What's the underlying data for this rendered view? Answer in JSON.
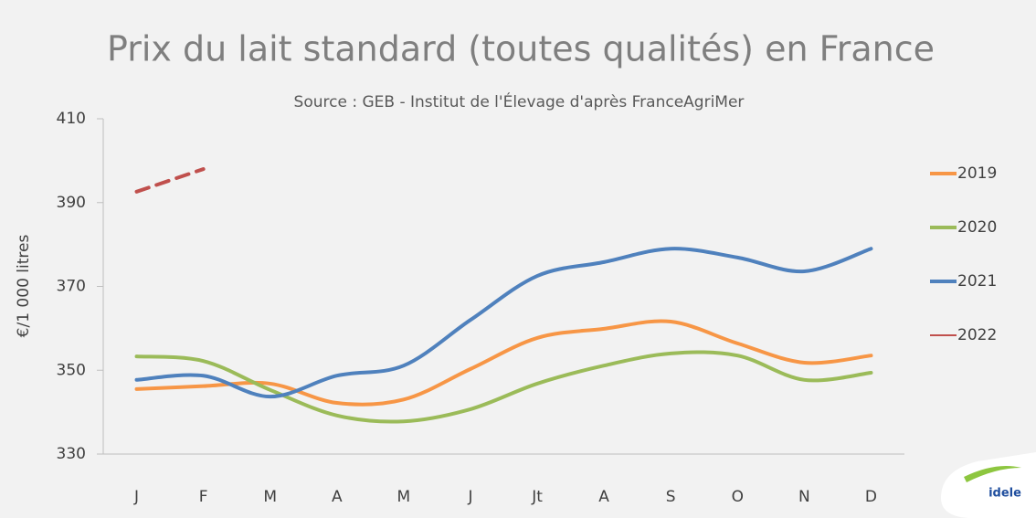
{
  "chart_data": {
    "type": "line",
    "title": "Prix du lait standard (toutes qualités) en France",
    "subtitle": "Source : GEB - Institut de l'Élevage d'après FranceAgriMer",
    "y_label": "€/1 000 litres",
    "categories": [
      "J",
      "F",
      "M",
      "A",
      "M",
      "J",
      "Jt",
      "A",
      "S",
      "O",
      "N",
      "D"
    ],
    "series": [
      {
        "name": "2019",
        "color": "#f79646",
        "style": "solid",
        "values": [
          345.5,
          346.2,
          346.8,
          342.2,
          343,
          350.3,
          357.7,
          359.9,
          361.6,
          356.4,
          351.8,
          353.5
        ]
      },
      {
        "name": "2020",
        "color": "#9bbb59",
        "style": "solid",
        "values": [
          353.3,
          352.2,
          345.3,
          339.2,
          337.8,
          340.7,
          346.8,
          351.1,
          354,
          353.5,
          347.7,
          349.4
        ]
      },
      {
        "name": "2021",
        "color": "#4f81bd",
        "style": "solid",
        "values": [
          347.7,
          348.7,
          343.7,
          348.7,
          351.1,
          362,
          372.5,
          375.8,
          379,
          376.9,
          373.6,
          379
        ]
      },
      {
        "name": "2022",
        "color": "#c0504d",
        "style": "dashed",
        "values": [
          392.6,
          398,
          null,
          null,
          null,
          null,
          null,
          null,
          null,
          null,
          null,
          null
        ]
      }
    ],
    "ylim": [
      330,
      410
    ],
    "yticks": [
      330,
      350,
      370,
      390,
      410
    ],
    "grid": false,
    "legend": "right",
    "logo": "idele"
  }
}
